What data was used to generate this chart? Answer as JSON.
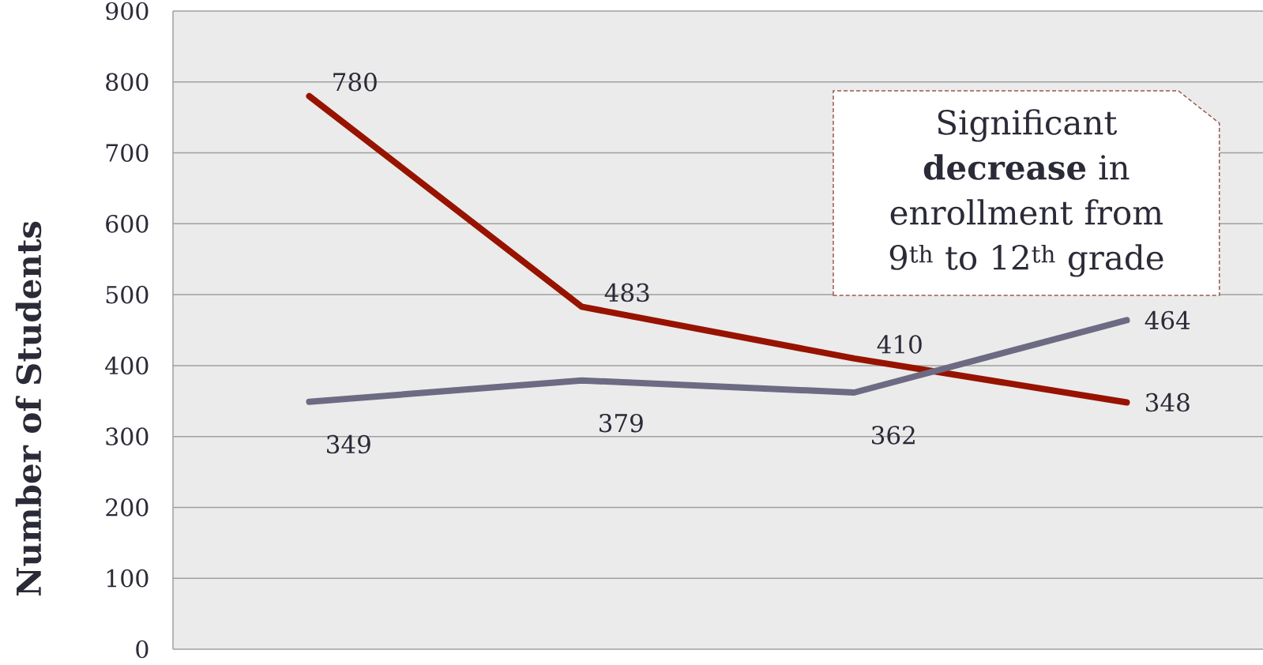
{
  "chart_data": {
    "type": "line",
    "ylabel": "Number of Students",
    "categories": [
      null,
      null,
      null,
      null
    ],
    "series": [
      {
        "color": "#971300",
        "values": [
          780,
          483,
          410,
          348
        ]
      },
      {
        "color": "#6c6b83",
        "values": [
          349,
          379,
          362,
          464
        ]
      }
    ],
    "ylim": [
      0,
      900
    ],
    "yticks": [
      0,
      100,
      200,
      300,
      400,
      500,
      600,
      700,
      800,
      900
    ],
    "grid": "y",
    "data_labels": true,
    "marker": "none",
    "line_style": "solid",
    "annotations": [
      "Significant **decrease** in enrollment from 9$^{th}$ to 12$^{th}$ grade"
    ]
  }
}
